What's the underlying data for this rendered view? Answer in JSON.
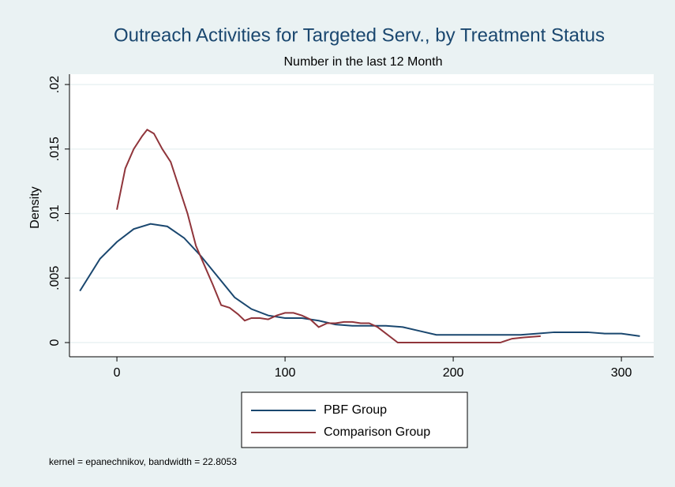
{
  "chart_data": {
    "type": "line",
    "title": "Outreach Activities for Targeted Serv., by Treatment Status",
    "subtitle": "Number in the last 12 Month",
    "y_label": "Density",
    "note": "kernel = epanechnikov, bandwidth = 22.8053",
    "xlim": [
      -28.2,
      319.2
    ],
    "xticks": [
      0,
      100,
      200,
      300
    ],
    "ylim": [
      -0.0011,
      0.0208
    ],
    "yticks": [
      0,
      {
        "value": 0.005,
        "label": ".005"
      },
      {
        "value": 0.01,
        "label": ".01"
      },
      {
        "value": 0.015,
        "label": ".015"
      },
      {
        "value": 0.02,
        "label": ".02"
      }
    ],
    "grid": true,
    "legend": "bottom",
    "series": [
      {
        "name": "PBF Group",
        "color": "#1a476f",
        "x": [
          -22,
          -10,
          0,
          10,
          20,
          30,
          40,
          50,
          60,
          70,
          80,
          90,
          100,
          110,
          120,
          130,
          140,
          150,
          160,
          170,
          180,
          190,
          200,
          210,
          220,
          230,
          240,
          250,
          260,
          270,
          280,
          290,
          300,
          311
        ],
        "values": [
          0.004,
          0.0065,
          0.0078,
          0.0088,
          0.0092,
          0.009,
          0.0081,
          0.0067,
          0.0051,
          0.0035,
          0.0026,
          0.0021,
          0.0019,
          0.0019,
          0.0017,
          0.0014,
          0.0013,
          0.0013,
          0.0013,
          0.0012,
          0.0009,
          0.0006,
          0.0006,
          0.0006,
          0.0006,
          0.0006,
          0.0006,
          0.0007,
          0.0008,
          0.0008,
          0.0008,
          0.0007,
          0.0007,
          0.0005
        ]
      },
      {
        "name": "Comparison Group",
        "color": "#90353b",
        "x": [
          0,
          5,
          10,
          15,
          18,
          22,
          27,
          32,
          37,
          42,
          47,
          52,
          57,
          62,
          67,
          72,
          76,
          80,
          85,
          90,
          95,
          100,
          105,
          110,
          115,
          120,
          125,
          130,
          135,
          140,
          145,
          150,
          155,
          160,
          167,
          180,
          200,
          228,
          235,
          242,
          252
        ],
        "values": [
          0.0103,
          0.0135,
          0.015,
          0.016,
          0.0165,
          0.0162,
          0.015,
          0.014,
          0.012,
          0.01,
          0.0075,
          0.006,
          0.0045,
          0.0029,
          0.0027,
          0.0022,
          0.0017,
          0.0019,
          0.0019,
          0.0018,
          0.0021,
          0.0023,
          0.0023,
          0.0021,
          0.0018,
          0.0012,
          0.0015,
          0.0015,
          0.0016,
          0.0016,
          0.0015,
          0.0015,
          0.0012,
          0.0007,
          0,
          0,
          0,
          0,
          0.0003,
          0.0004,
          0.0005
        ]
      }
    ]
  }
}
